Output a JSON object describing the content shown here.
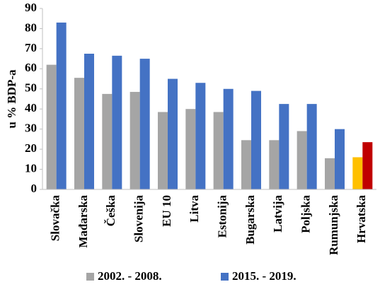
{
  "chart_data": {
    "type": "bar",
    "y_label": "u % BDP-a",
    "categories": [
      "Slovačka",
      "Mađarska",
      "Češka",
      "Slovenija",
      "EU 10",
      "Litva",
      "Estonija",
      "Bugarska",
      "Latvija",
      "Poljska",
      "Rumunjska",
      "Hrvatska"
    ],
    "series": [
      {
        "name": "2002. - 2008.",
        "color": "#a5a5a5",
        "colors": [
          "#a5a5a5",
          "#a5a5a5",
          "#a5a5a5",
          "#a5a5a5",
          "#a5a5a5",
          "#a5a5a5",
          "#a5a5a5",
          "#a5a5a5",
          "#a5a5a5",
          "#a5a5a5",
          "#a5a5a5",
          "#ffc000"
        ],
        "values": [
          62,
          55.5,
          47.5,
          48.5,
          38.5,
          40,
          38.5,
          24.5,
          24.5,
          29,
          15.5,
          16
        ]
      },
      {
        "name": "2015. - 2019.",
        "color": "#4472c4",
        "colors": [
          "#4472c4",
          "#4472c4",
          "#4472c4",
          "#4472c4",
          "#4472c4",
          "#4472c4",
          "#4472c4",
          "#4472c4",
          "#4472c4",
          "#4472c4",
          "#4472c4",
          "#c00000"
        ],
        "values": [
          83,
          67.5,
          66.5,
          65,
          55,
          53,
          50,
          49,
          42.5,
          42.5,
          30,
          23.5
        ]
      }
    ],
    "ylim": [
      0,
      90
    ],
    "yticks": [
      0,
      10,
      20,
      30,
      40,
      50,
      60,
      70,
      80,
      90
    ],
    "grid": false,
    "legend": "bottom"
  }
}
